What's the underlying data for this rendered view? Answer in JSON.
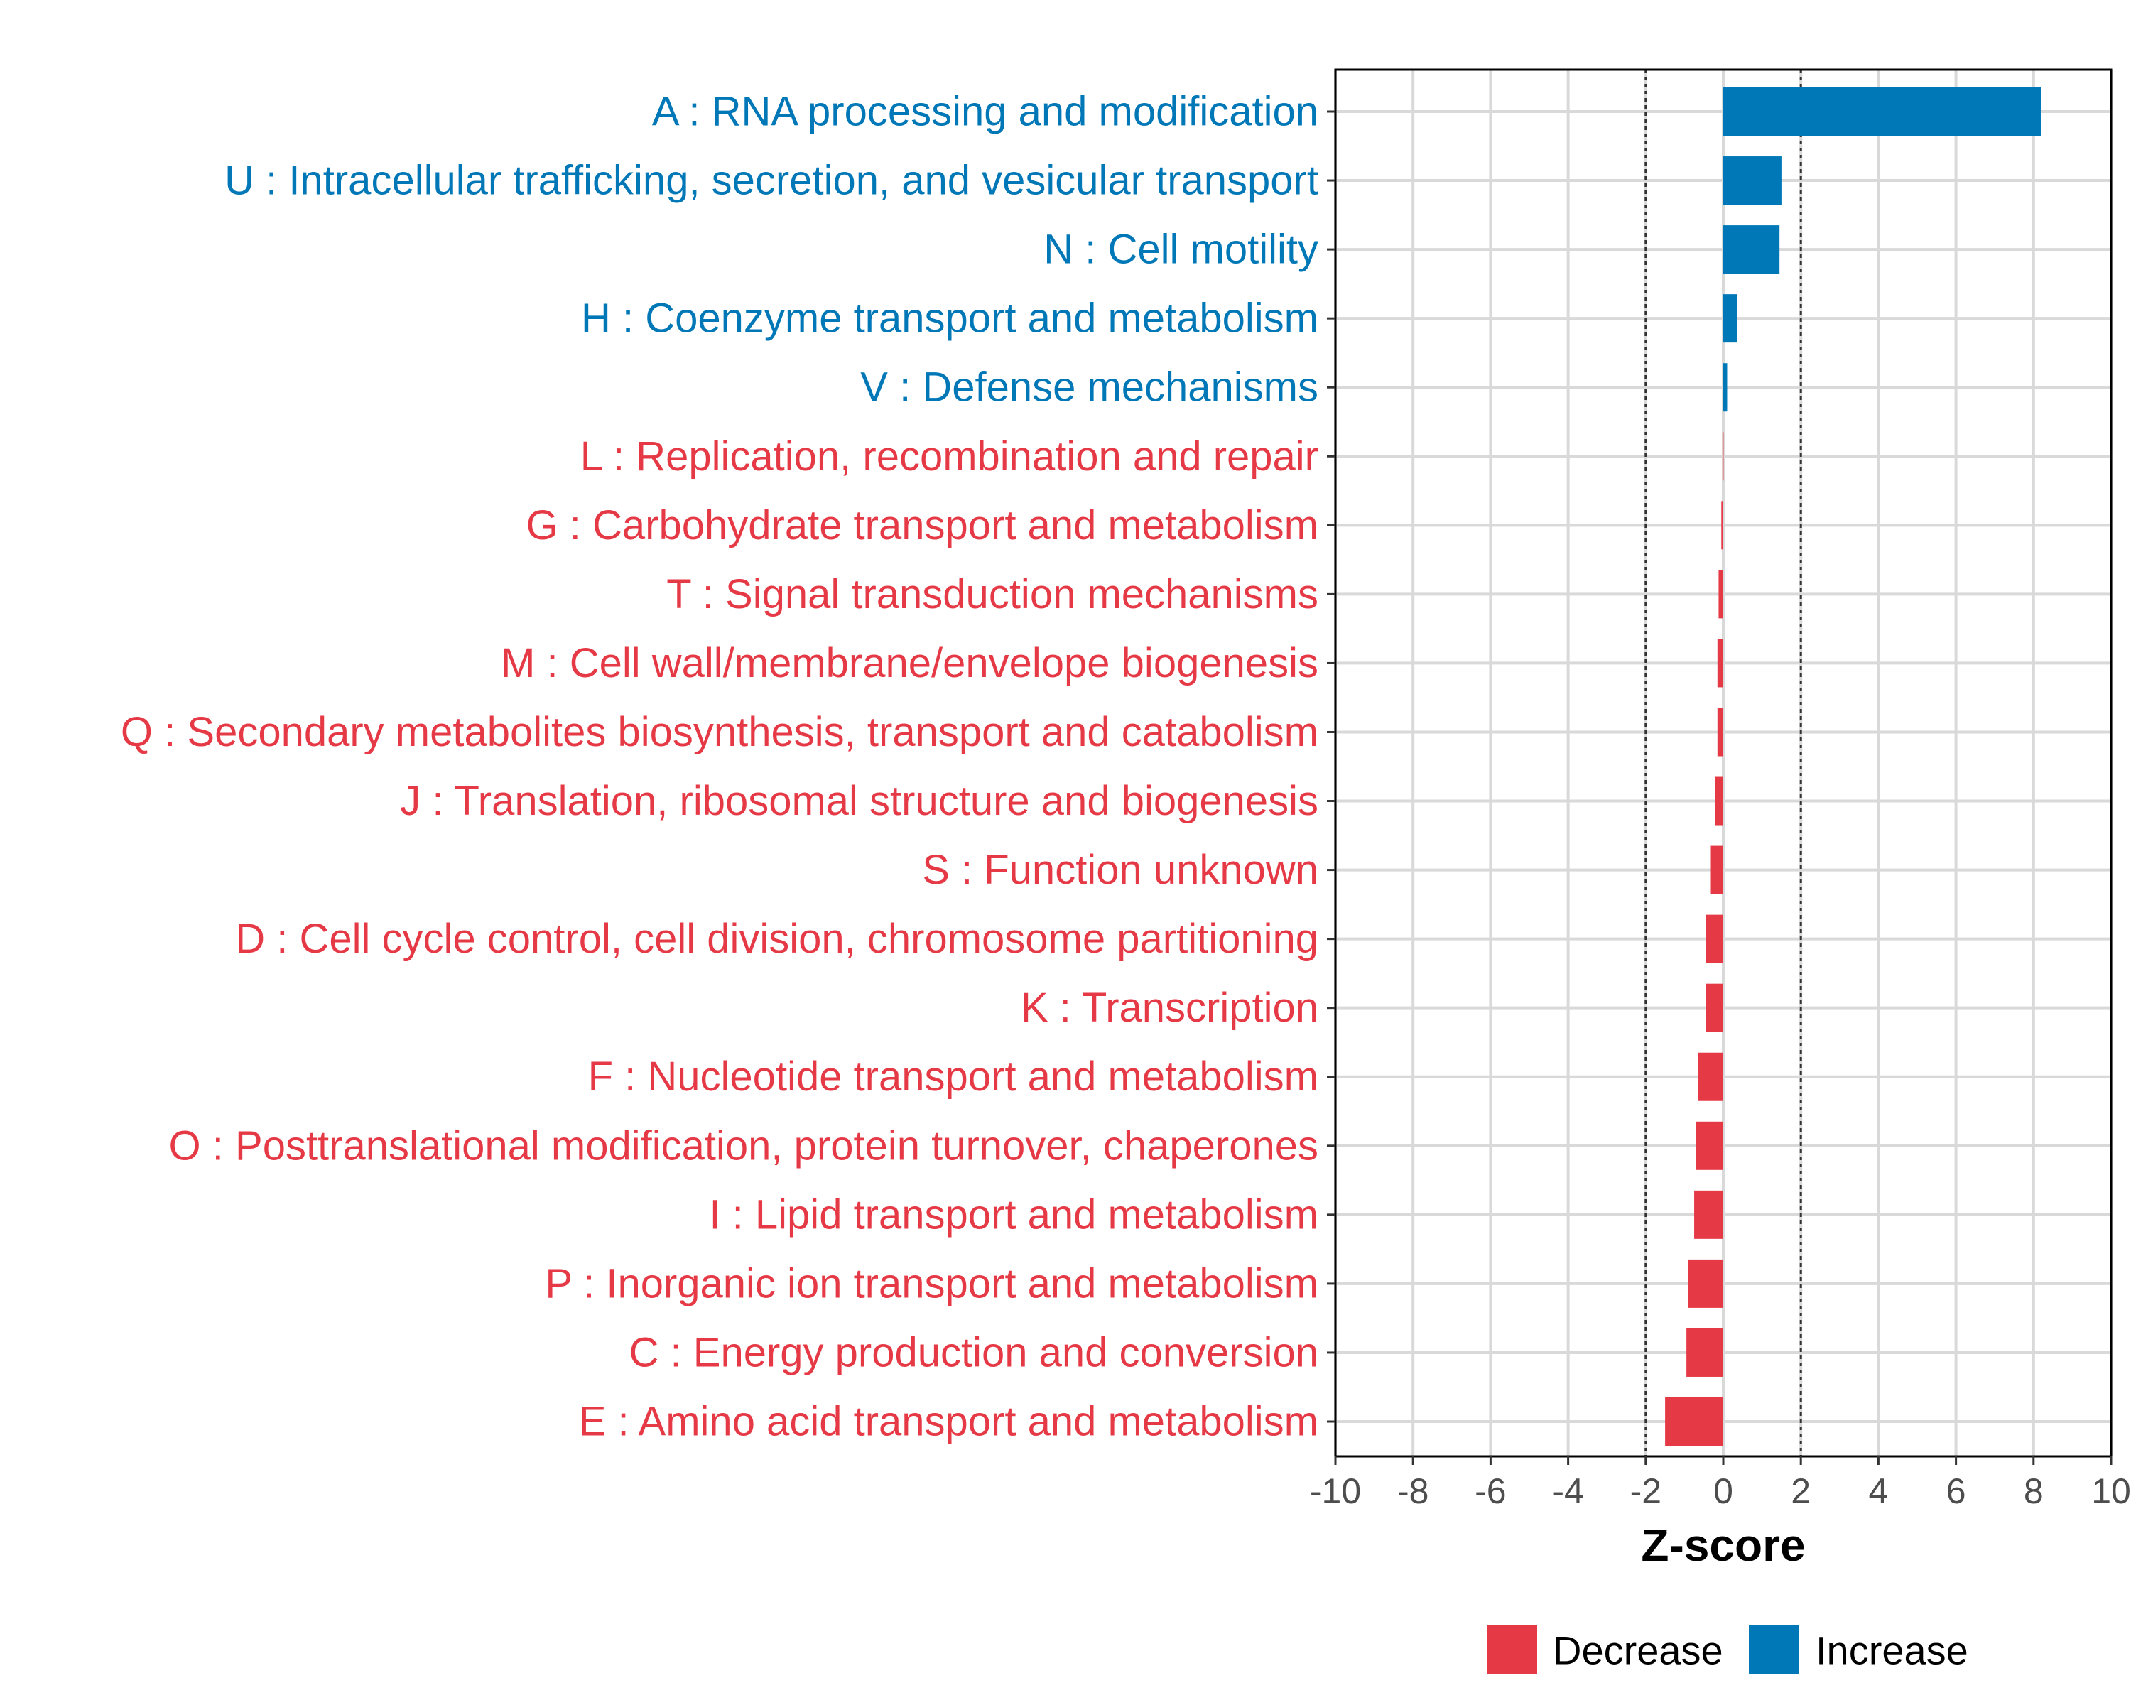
{
  "chart_data": {
    "type": "bar",
    "orientation": "horizontal",
    "title": "",
    "xlabel": "Z-score",
    "ylabel": "",
    "xlim": [
      -10,
      10
    ],
    "xticks": [
      -10,
      -8,
      -6,
      -4,
      -2,
      0,
      2,
      4,
      6,
      8,
      10
    ],
    "threshold_lines": [
      -2,
      2
    ],
    "grid": true,
    "colors": {
      "Decrease": "#E63946",
      "Increase": "#0077B6"
    },
    "categories": [
      {
        "label": "A : RNA processing and modification",
        "value": 8.2,
        "group": "Increase"
      },
      {
        "label": "U : Intracellular trafficking, secretion, and vesicular transport",
        "value": 1.5,
        "group": "Increase"
      },
      {
        "label": "N : Cell motility",
        "value": 1.45,
        "group": "Increase"
      },
      {
        "label": "H : Coenzyme transport and metabolism",
        "value": 0.35,
        "group": "Increase"
      },
      {
        "label": "V : Defense mechanisms",
        "value": 0.1,
        "group": "Increase"
      },
      {
        "label": "L : Replication, recombination and repair",
        "value": -0.02,
        "group": "Decrease"
      },
      {
        "label": "G : Carbohydrate transport and metabolism",
        "value": -0.05,
        "group": "Decrease"
      },
      {
        "label": "T : Signal transduction mechanisms",
        "value": -0.12,
        "group": "Decrease"
      },
      {
        "label": "M : Cell wall/membrane/envelope biogenesis",
        "value": -0.15,
        "group": "Decrease"
      },
      {
        "label": "Q : Secondary metabolites biosynthesis, transport and catabolism",
        "value": -0.15,
        "group": "Decrease"
      },
      {
        "label": "J : Translation, ribosomal structure and biogenesis",
        "value": -0.22,
        "group": "Decrease"
      },
      {
        "label": "S : Function unknown",
        "value": -0.32,
        "group": "Decrease"
      },
      {
        "label": "D : Cell cycle control, cell division, chromosome partitioning",
        "value": -0.45,
        "group": "Decrease"
      },
      {
        "label": "K : Transcription",
        "value": -0.45,
        "group": "Decrease"
      },
      {
        "label": "F : Nucleotide transport and metabolism",
        "value": -0.65,
        "group": "Decrease"
      },
      {
        "label": "O : Posttranslational modification, protein turnover, chaperones",
        "value": -0.7,
        "group": "Decrease"
      },
      {
        "label": "I : Lipid transport and metabolism",
        "value": -0.75,
        "group": "Decrease"
      },
      {
        "label": "P : Inorganic ion transport and metabolism",
        "value": -0.9,
        "group": "Decrease"
      },
      {
        "label": "C : Energy production and conversion",
        "value": -0.95,
        "group": "Decrease"
      },
      {
        "label": "E : Amino acid transport and metabolism",
        "value": -1.5,
        "group": "Decrease"
      }
    ],
    "legend": {
      "position": "bottom",
      "items": [
        "Decrease",
        "Increase"
      ]
    }
  }
}
